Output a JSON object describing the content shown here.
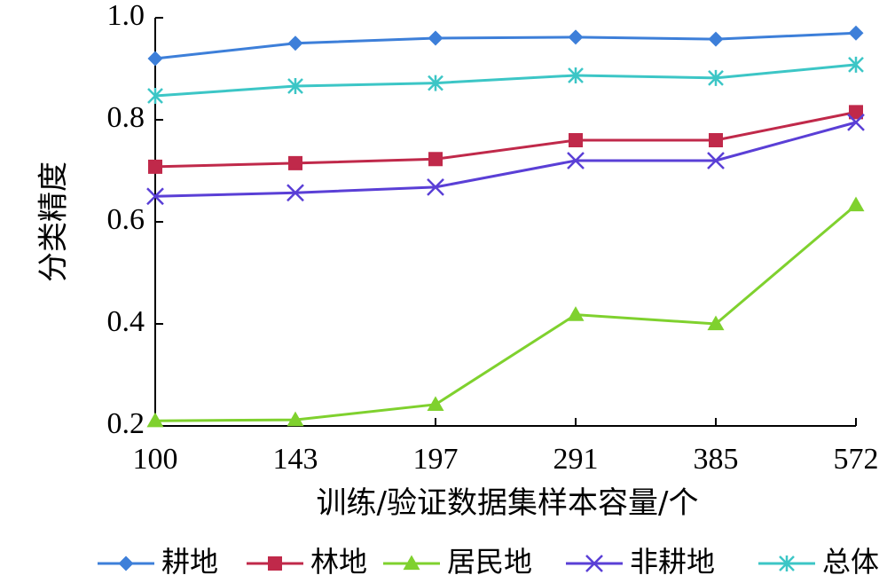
{
  "chart_data": {
    "type": "line",
    "xlabel": "训练/验证数据集样本容量/个",
    "ylabel": "分类精度",
    "categories": [
      "100",
      "143",
      "197",
      "291",
      "385",
      "572"
    ],
    "ylim": [
      0.2,
      1.0
    ],
    "yticks": [
      0.2,
      0.4,
      0.6,
      0.8,
      1.0
    ],
    "ytick_labels": [
      "0.2",
      "0.4",
      "0.6",
      "0.8",
      "1.0"
    ],
    "grid": false,
    "legend_position": "bottom",
    "series": [
      {
        "name": "耕地",
        "color": "#3d7fd9",
        "marker": "diamond",
        "values": [
          0.92,
          0.95,
          0.96,
          0.962,
          0.958,
          0.97
        ]
      },
      {
        "name": "林地",
        "color": "#c0294a",
        "marker": "square",
        "values": [
          0.708,
          0.715,
          0.723,
          0.76,
          0.76,
          0.815
        ]
      },
      {
        "name": "居民地",
        "color": "#7fd12e",
        "marker": "triangle",
        "values": [
          0.21,
          0.212,
          0.242,
          0.418,
          0.4,
          0.633
        ]
      },
      {
        "name": "非耕地",
        "color": "#5a3fd6",
        "marker": "x",
        "values": [
          0.65,
          0.657,
          0.668,
          0.72,
          0.72,
          0.795
        ]
      },
      {
        "name": "总体",
        "color": "#3cc6c6",
        "marker": "star",
        "values": [
          0.847,
          0.866,
          0.872,
          0.887,
          0.882,
          0.908
        ]
      }
    ]
  }
}
